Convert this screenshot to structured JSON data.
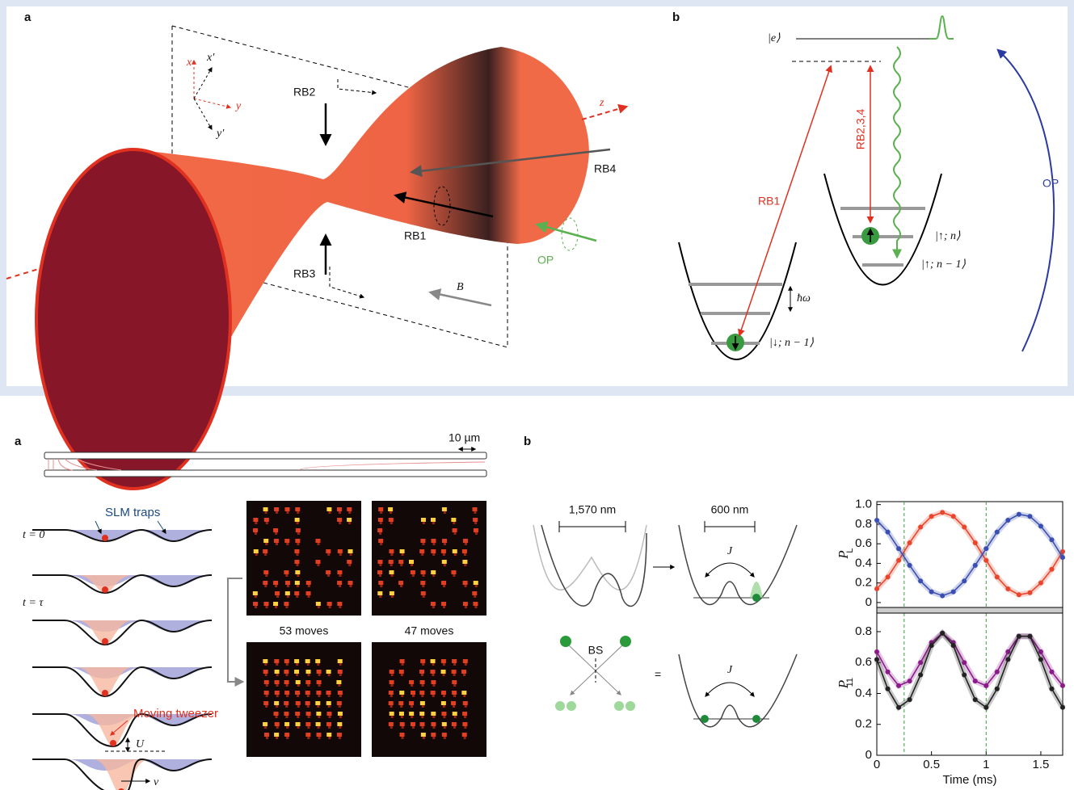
{
  "top": {
    "a": {
      "label": "a",
      "axes": [
        "x",
        "x′",
        "y",
        "y′",
        "z"
      ],
      "beams": [
        "RB2",
        "RB4",
        "RB1",
        "RB3",
        "OP",
        "B"
      ]
    },
    "b": {
      "label": "b",
      "e": "|e⟩",
      "rb1": "RB1",
      "rb234": "RB2,3,4",
      "op": "OP",
      "up_n": "|↑; n⟩",
      "up_n1": "|↑; n − 1⟩",
      "down": "|↓; n − 1⟩",
      "hw": "ħω"
    }
  },
  "bottom": {
    "a": {
      "label": "a",
      "scale": "10 µm",
      "slm": "SLM traps",
      "t0": "t = 0",
      "ttau": "t = τ",
      "moving": "Moving tweezer",
      "U": "U",
      "v": "v",
      "moves": [
        "53 moves",
        "47 moves"
      ]
    },
    "b": {
      "label": "b",
      "d1": "1,570 nm",
      "d2": "600 nm",
      "J": "J",
      "BS": "BS",
      "eq": "="
    }
  },
  "chart_data": [
    {
      "type": "line",
      "y_label": "P",
      "y_label_subscript": "L",
      "xlim": [
        0,
        1.7
      ],
      "ylim": [
        -0.05,
        1.03
      ],
      "yticks": [
        0,
        0.2,
        0.4,
        0.6,
        0.8,
        {
          "value": 1,
          "label": "1.0"
        }
      ],
      "vlines": [
        0.25,
        1
      ],
      "x": [
        0,
        0.1,
        0.2,
        0.3,
        0.4,
        0.5,
        0.6,
        0.7,
        0.8,
        0.9,
        1,
        1.1,
        1.2,
        1.3,
        1.4,
        1.5,
        1.6,
        1.7
      ],
      "series": [
        {
          "color": "#e8452c",
          "values": [
            0.14,
            0.26,
            0.43,
            0.61,
            0.77,
            0.88,
            0.92,
            0.88,
            0.77,
            0.61,
            0.43,
            0.26,
            0.14,
            0.08,
            0.1,
            0.2,
            0.34,
            0.52
          ]
        },
        {
          "color": "#3b4fb0",
          "values": [
            0.84,
            0.72,
            0.55,
            0.38,
            0.22,
            0.11,
            0.07,
            0.11,
            0.22,
            0.38,
            0.55,
            0.72,
            0.84,
            0.9,
            0.88,
            0.78,
            0.64,
            0.46
          ]
        }
      ]
    },
    {
      "type": "line",
      "y_label": "P",
      "y_label_subscript": "11",
      "x_label": "Time (ms)",
      "xlim": [
        0,
        1.7
      ],
      "ylim": [
        0,
        0.92
      ],
      "xticks": [
        0,
        0.5,
        1,
        1.5
      ],
      "yticks": [
        0,
        0.2,
        0.4,
        0.6,
        0.8
      ],
      "vlines": [
        0.25,
        1
      ],
      "x": [
        0,
        0.1,
        0.2,
        0.3,
        0.4,
        0.5,
        0.6,
        0.7,
        0.8,
        0.9,
        1,
        1.1,
        1.2,
        1.3,
        1.4,
        1.5,
        1.6,
        1.7
      ],
      "series": [
        {
          "color": "#8b1a8b",
          "values": [
            0.67,
            0.54,
            0.45,
            0.48,
            0.6,
            0.73,
            0.79,
            0.73,
            0.6,
            0.48,
            0.45,
            0.54,
            0.67,
            0.77,
            0.77,
            0.67,
            0.54,
            0.45
          ]
        },
        {
          "color": "#222222",
          "values": [
            0.62,
            0.43,
            0.31,
            0.36,
            0.52,
            0.71,
            0.79,
            0.71,
            0.52,
            0.36,
            0.31,
            0.43,
            0.62,
            0.77,
            0.77,
            0.62,
            0.43,
            0.31
          ]
        }
      ]
    }
  ]
}
